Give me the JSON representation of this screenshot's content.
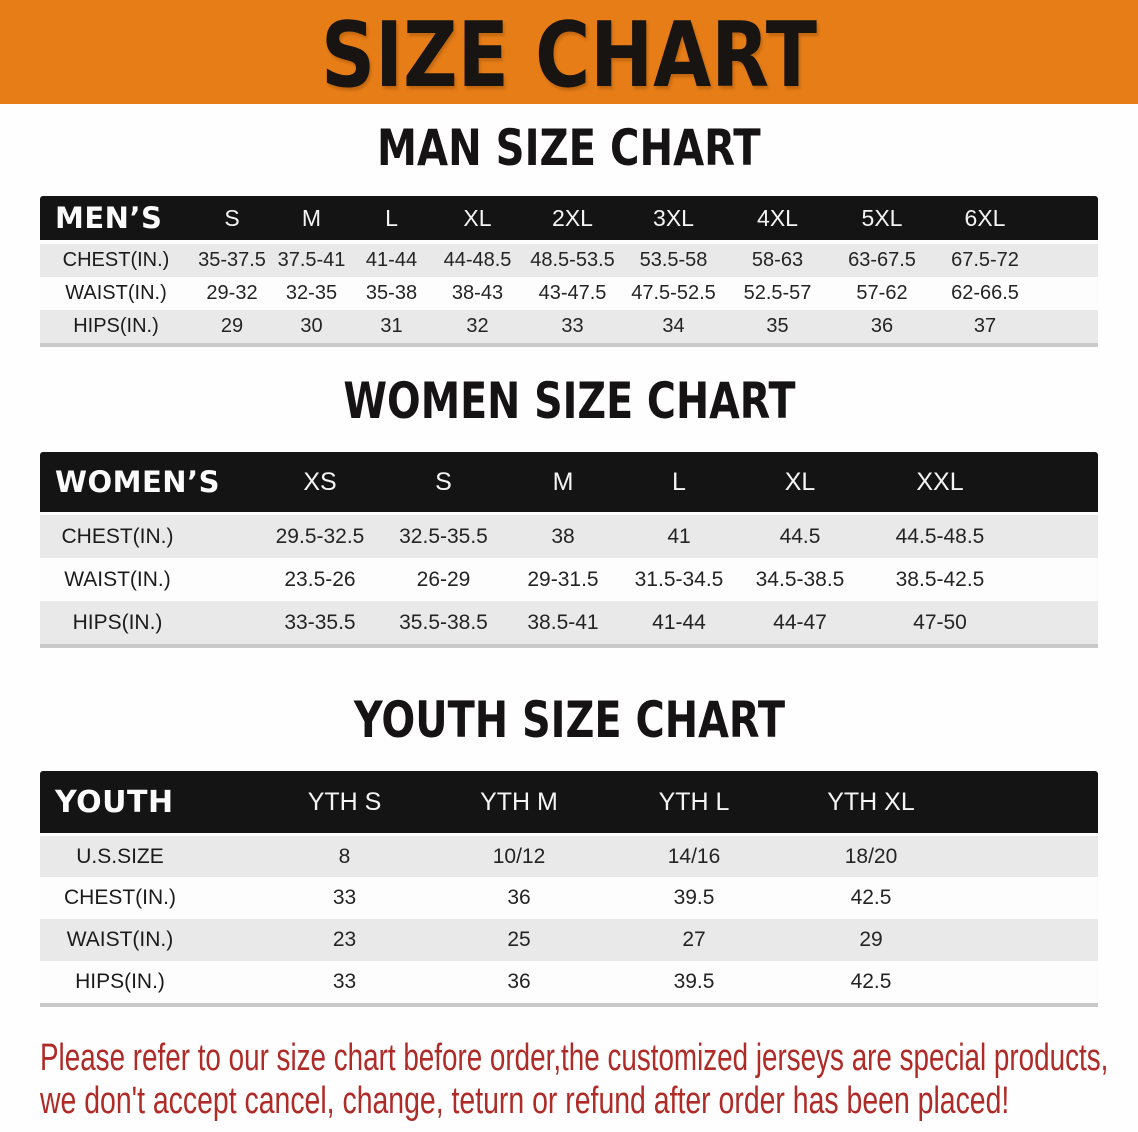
{
  "banner": {
    "title": "SIZE CHART"
  },
  "colors": {
    "banner_bg": "#e67d17",
    "table_header_bg": "#141414",
    "row_shaded_bg": "#e9e9e9",
    "row_plain_bg": "#fdfdfd",
    "disclaimer_text": "#b3282a"
  },
  "sections": [
    {
      "id": "men",
      "heading": "MAN SIZE CHART",
      "table": {
        "label": "MEN’S",
        "sizes": [
          "S",
          "M",
          "L",
          "XL",
          "2XL",
          "3XL",
          "4XL",
          "5XL",
          "6XL"
        ],
        "rows": [
          {
            "label": "CHEST(IN.)",
            "values": [
              "35-37.5",
              "37.5-41",
              "41-44",
              "44-48.5",
              "48.5-53.5",
              "53.5-58",
              "58-63",
              "63-67.5",
              "67.5-72"
            ]
          },
          {
            "label": "WAIST(IN.)",
            "values": [
              "29-32",
              "32-35",
              "35-38",
              "38-43",
              "43-47.5",
              "47.5-52.5",
              "52.5-57",
              "57-62",
              "62-66.5"
            ]
          },
          {
            "label": "HIPS(IN.)",
            "values": [
              "29",
              "30",
              "31",
              "32",
              "33",
              "34",
              "35",
              "36",
              "37"
            ]
          }
        ]
      }
    },
    {
      "id": "women",
      "heading": "WOMEN SIZE CHART",
      "table": {
        "label": "WOMEN’S",
        "sizes": [
          "XS",
          "S",
          "M",
          "L",
          "XL",
          "XXL"
        ],
        "rows": [
          {
            "label": "CHEST(IN.)",
            "values": [
              "29.5-32.5",
              "32.5-35.5",
              "38",
              "41",
              "44.5",
              "44.5-48.5"
            ]
          },
          {
            "label": "WAIST(IN.)",
            "values": [
              "23.5-26",
              "26-29",
              "29-31.5",
              "31.5-34.5",
              "34.5-38.5",
              "38.5-42.5"
            ]
          },
          {
            "label": "HIPS(IN.)",
            "values": [
              "33-35.5",
              "35.5-38.5",
              "38.5-41",
              "41-44",
              "44-47",
              "47-50"
            ]
          }
        ]
      }
    },
    {
      "id": "youth",
      "heading": "YOUTH SIZE CHART",
      "table": {
        "label": "YOUTH",
        "sizes": [
          "YTH S",
          "YTH M",
          "YTH L",
          "YTH XL"
        ],
        "rows": [
          {
            "label": "U.S.SIZE",
            "values": [
              "8",
              "10/12",
              "14/16",
              "18/20"
            ]
          },
          {
            "label": "CHEST(IN.)",
            "values": [
              "33",
              "36",
              "39.5",
              "42.5"
            ]
          },
          {
            "label": "WAIST(IN.)",
            "values": [
              "23",
              "25",
              "27",
              "29"
            ]
          },
          {
            "label": "HIPS(IN.)",
            "values": [
              "33",
              "36",
              "39.5",
              "42.5"
            ]
          }
        ]
      }
    }
  ],
  "disclaimer": {
    "line1": "Please refer to our size chart before order,the customized jerseys are special products,",
    "line2": "we don't accept cancel, change, teturn or refund after order has been placed!"
  }
}
